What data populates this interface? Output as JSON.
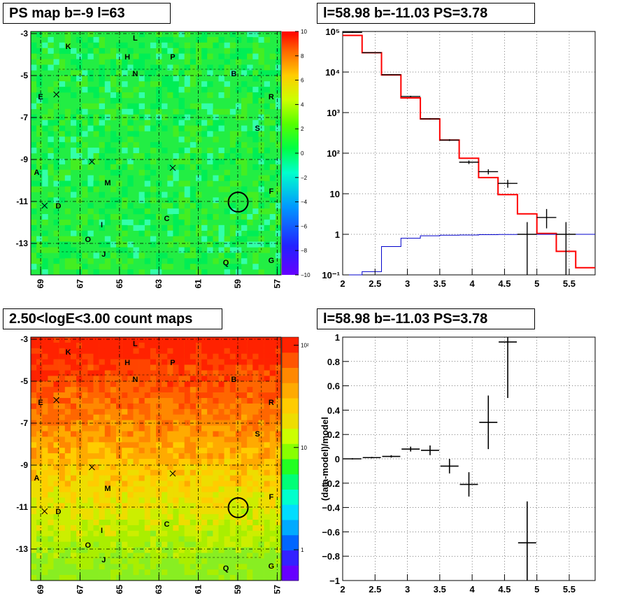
{
  "panels": {
    "ps_map": {
      "title": "PS map b=-9 l=63",
      "lon_ticks": [
        "69",
        "67",
        "65",
        "63",
        "61",
        "59",
        "57"
      ],
      "lat_ticks": [
        "-3",
        "-5",
        "-7",
        "-9",
        "-11",
        "-13"
      ],
      "colorbar_ticks": [
        "10",
        "8",
        "6",
        "4",
        "2",
        "0",
        "−2",
        "−4",
        "−6",
        "−8",
        "−10"
      ]
    },
    "count_map": {
      "title": "2.50<logE<3.00 count maps",
      "lon_ticks": [
        "69",
        "67",
        "65",
        "63",
        "61",
        "59",
        "57"
      ],
      "lat_ticks": [
        "-3",
        "-5",
        "-7",
        "-9",
        "-11",
        "-13"
      ],
      "colorbar_ticks": [
        "10²",
        "10",
        "1"
      ]
    },
    "spectrum": {
      "title": "l=58.98 b=-11.03 PS=3.78"
    },
    "residual": {
      "title": "l=58.98 b=-11.03 PS=3.78"
    }
  },
  "map_labels": [
    {
      "t": "K",
      "l": 67.6,
      "b": -3.6
    },
    {
      "t": "L",
      "l": 64.2,
      "b": -3.2
    },
    {
      "t": "H",
      "l": 64.6,
      "b": -4.1
    },
    {
      "t": "P",
      "l": 62.3,
      "b": -4.1
    },
    {
      "t": "N",
      "l": 64.2,
      "b": -4.9
    },
    {
      "t": "B",
      "l": 59.2,
      "b": -4.9
    },
    {
      "t": "E",
      "l": 69.0,
      "b": -6.0
    },
    {
      "t": "R",
      "l": 57.3,
      "b": -6.0
    },
    {
      "t": "S",
      "l": 58.0,
      "b": -7.5
    },
    {
      "t": "A",
      "l": 69.2,
      "b": -9.6
    },
    {
      "t": "M",
      "l": 65.6,
      "b": -10.1
    },
    {
      "t": "F",
      "l": 57.3,
      "b": -10.5
    },
    {
      "t": "D",
      "l": 68.1,
      "b": -11.2
    },
    {
      "t": "C",
      "l": 62.6,
      "b": -11.8
    },
    {
      "t": "I",
      "l": 65.9,
      "b": -12.1
    },
    {
      "t": "O",
      "l": 66.6,
      "b": -12.8
    },
    {
      "t": "J",
      "l": 65.8,
      "b": -13.5
    },
    {
      "t": "Q",
      "l": 59.6,
      "b": -13.9
    },
    {
      "t": "G",
      "l": 57.3,
      "b": -13.8
    }
  ],
  "map_crosses": [
    {
      "l": 68.2,
      "b": -5.9
    },
    {
      "l": 66.4,
      "b": -9.1
    },
    {
      "l": 62.3,
      "b": -9.4
    },
    {
      "l": 68.8,
      "b": -11.2
    }
  ],
  "source_circle": {
    "l": 58.98,
    "b": -11.03
  },
  "chart_data": [
    {
      "type": "heatmap",
      "name": "ps_map",
      "xlim": [
        69.5,
        56.8
      ],
      "ylim": [
        -14.5,
        -2.9
      ],
      "zlim": [
        -10,
        10
      ]
    },
    {
      "type": "heatmap",
      "name": "count_map",
      "xlim": [
        69.5,
        56.8
      ],
      "ylim": [
        -14.5,
        -2.9
      ],
      "zlog": true,
      "zlim": [
        0.5,
        120
      ]
    },
    {
      "type": "line",
      "name": "spectrum",
      "xlim": [
        2,
        5.9
      ],
      "ylim": [
        0.1,
        100000
      ],
      "ylog": true,
      "grid": true,
      "x_ticks": [
        "2",
        "2.5",
        "3",
        "3.5",
        "4",
        "4.5",
        "5",
        "5.5"
      ],
      "y_ticks": [
        {
          "label": "10⁻¹",
          "v": 0.1
        },
        {
          "label": "1",
          "v": 1
        },
        {
          "label": "10",
          "v": 10
        },
        {
          "label": "10²",
          "v": 100
        },
        {
          "label": "10³",
          "v": 1000
        },
        {
          "label": "10⁴",
          "v": 10000
        },
        {
          "label": "10⁵",
          "v": 100000
        }
      ],
      "bin_edges": [
        2.0,
        2.3,
        2.6,
        2.9,
        3.2,
        3.5,
        3.8,
        4.1,
        4.4,
        4.7,
        5.0,
        5.3,
        5.6,
        5.9
      ],
      "series": [
        {
          "color": "#ff0000",
          "values": [
            80000,
            30000,
            8500,
            2300,
            700,
            210,
            75,
            25,
            9.5,
            3.2,
            1.05,
            0.38,
            0.15
          ]
        },
        {
          "color": "#0000cc",
          "values": [
            0.1,
            0.12,
            0.5,
            0.8,
            0.92,
            0.95,
            0.96,
            0.98,
            0.99,
            1.0,
            1.0,
            1.0,
            1.0
          ]
        }
      ],
      "data_points": [
        {
          "x": 2.15,
          "y": 95000,
          "ylo": 92000,
          "yhi": 98000
        },
        {
          "x": 2.45,
          "y": 30000,
          "ylo": 29500,
          "yhi": 30500
        },
        {
          "x": 2.75,
          "y": 8600,
          "ylo": 8400,
          "yhi": 8800
        },
        {
          "x": 3.05,
          "y": 2500,
          "ylo": 2400,
          "yhi": 2600
        },
        {
          "x": 3.35,
          "y": 700,
          "ylo": 680,
          "yhi": 720
        },
        {
          "x": 3.65,
          "y": 210,
          "ylo": 200,
          "yhi": 220
        },
        {
          "x": 3.95,
          "y": 60,
          "ylo": 54,
          "yhi": 66
        },
        {
          "x": 4.25,
          "y": 35,
          "ylo": 30,
          "yhi": 40
        },
        {
          "x": 4.55,
          "y": 18,
          "ylo": 14,
          "yhi": 22
        },
        {
          "x": 4.85,
          "y": 1.0,
          "ylo": 0.09,
          "yhi": 2.0
        },
        {
          "x": 5.15,
          "y": 2.6,
          "ylo": 1.4,
          "yhi": 4.2
        },
        {
          "x": 5.45,
          "y": 1.0,
          "ylo": 0.09,
          "yhi": 2.0
        }
      ]
    },
    {
      "type": "scatter",
      "name": "residual",
      "xlim": [
        2,
        5.9
      ],
      "ylim": [
        -1,
        1
      ],
      "ylabel": "(data-model)/model",
      "grid": true,
      "x_ticks": [
        "2",
        "2.5",
        "3",
        "3.5",
        "4",
        "4.5",
        "5",
        "5.5"
      ],
      "y_ticks": [
        "1",
        "0.8",
        "0.6",
        "0.4",
        "0.2",
        "0",
        "−0.2",
        "−0.4",
        "−0.6",
        "−0.8",
        "−1"
      ],
      "points": [
        {
          "x": 2.15,
          "y": 0.0,
          "err": 0.005
        },
        {
          "x": 2.45,
          "y": 0.01,
          "err": 0.006
        },
        {
          "x": 2.75,
          "y": 0.02,
          "err": 0.01
        },
        {
          "x": 3.05,
          "y": 0.08,
          "err": 0.02
        },
        {
          "x": 3.35,
          "y": 0.07,
          "err": 0.04
        },
        {
          "x": 3.65,
          "y": -0.06,
          "err": 0.06
        },
        {
          "x": 3.95,
          "y": -0.21,
          "err": 0.1
        },
        {
          "x": 4.25,
          "y": 0.3,
          "err": 0.22
        },
        {
          "x": 4.55,
          "y": 0.96,
          "err": 0.46
        },
        {
          "x": 4.85,
          "y": -0.69,
          "err": 0.34
        }
      ]
    }
  ]
}
